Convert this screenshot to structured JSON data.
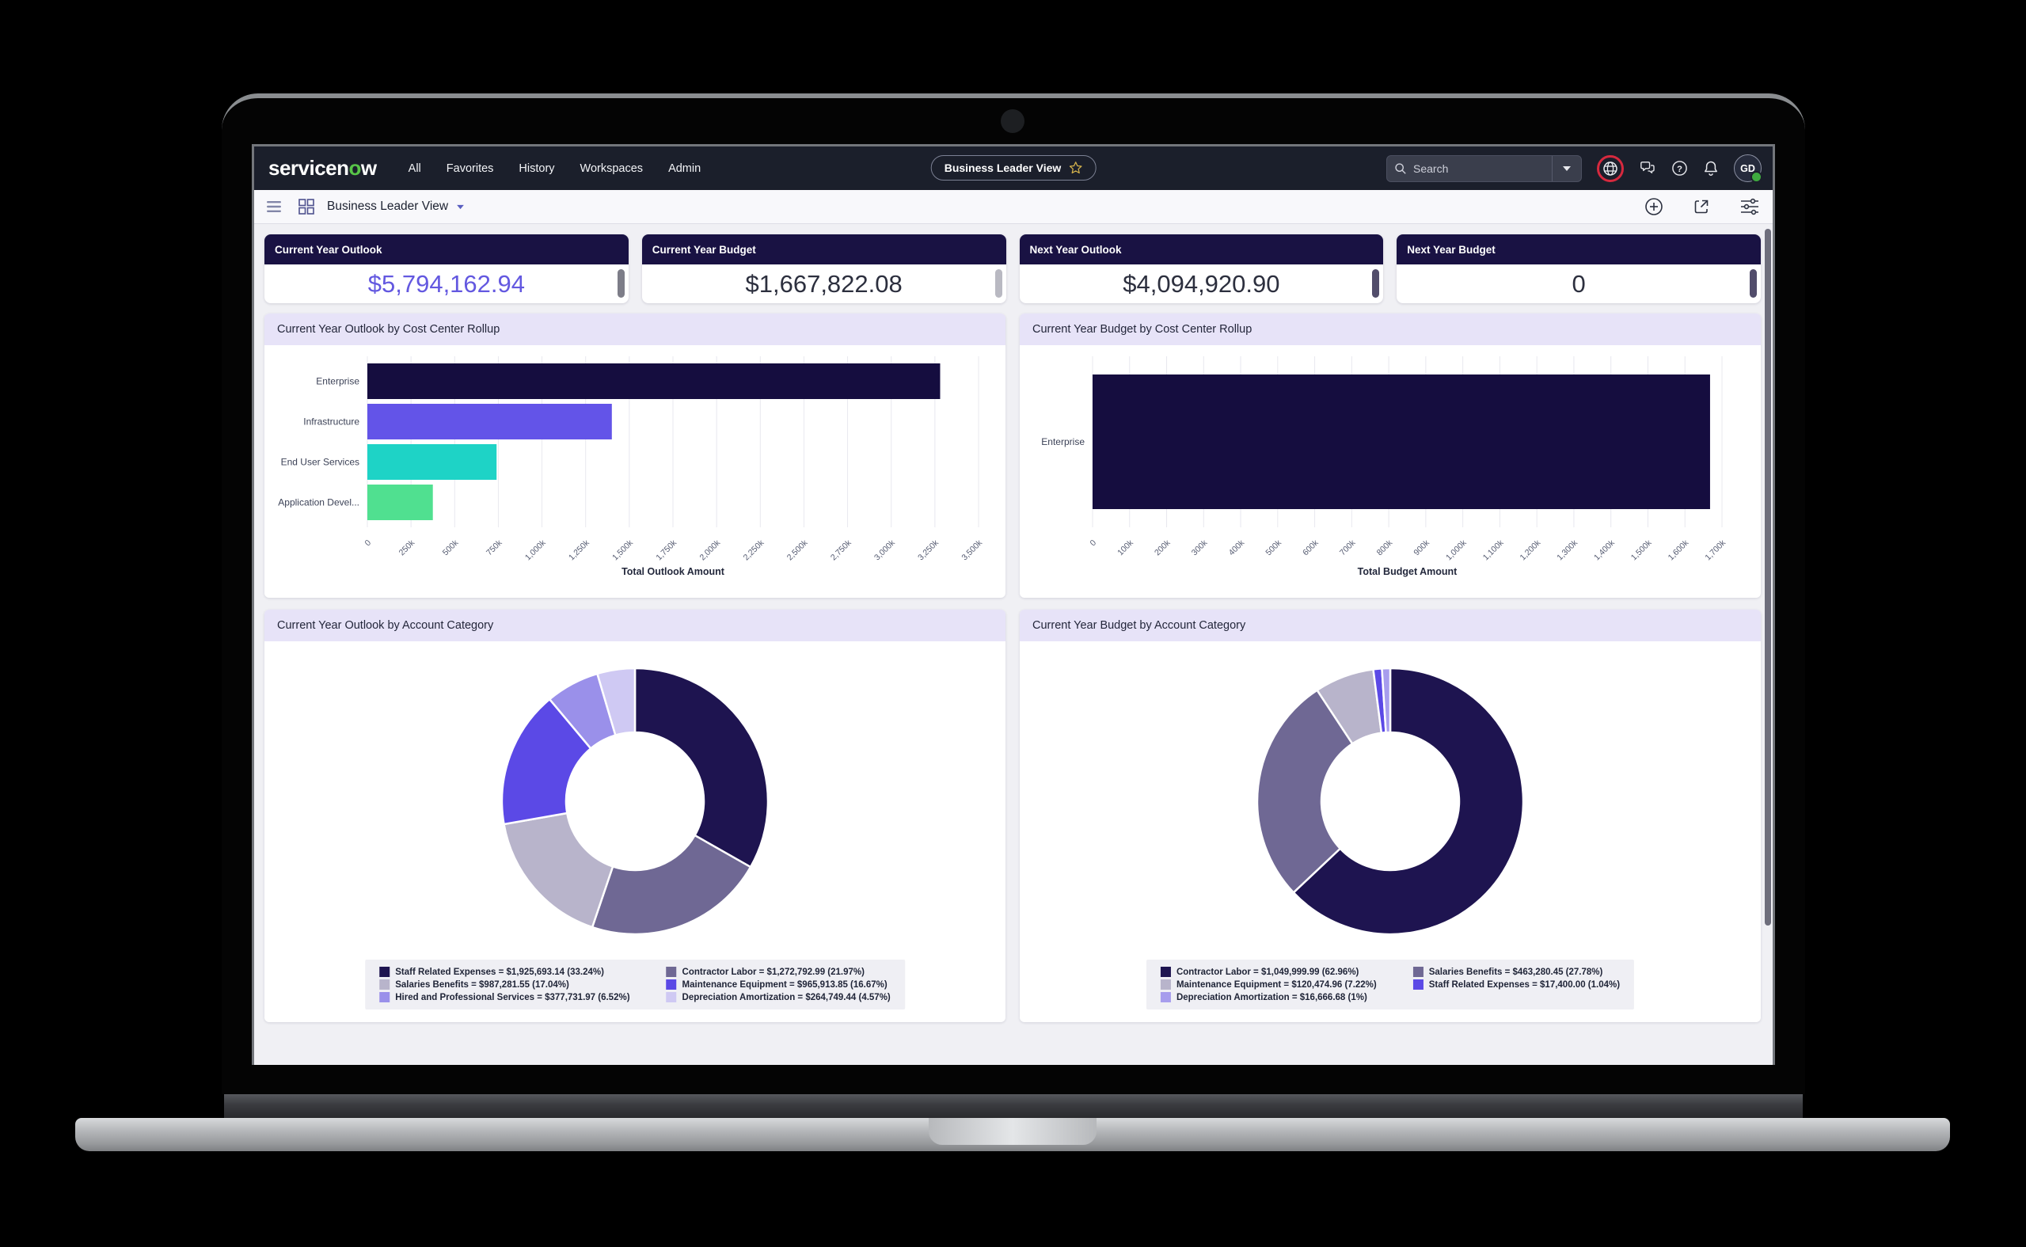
{
  "colors": {
    "header_bg": "#1b1f2b",
    "logo_green": "#58c548",
    "kpi_header_navy": "#191243",
    "panel_title_bg": "#e7e3f8",
    "highlight_ring_red": "#d6293e",
    "kpi_value_accent": "#6358e0"
  },
  "header": {
    "logo": {
      "part1": "servicen",
      "accent": "o",
      "part2": "w"
    },
    "nav_items": [
      "All",
      "Favorites",
      "History",
      "Workspaces",
      "Admin"
    ],
    "favorite_pill": {
      "label": "Business Leader View"
    },
    "search": {
      "placeholder": "Search"
    },
    "avatar_initials": "GD"
  },
  "toolbar": {
    "title": "Business Leader View"
  },
  "kpi_cards": [
    {
      "title": "Current Year Outlook",
      "value": "$5,794,162.94",
      "value_color": "#6358e0",
      "thumb_color": "#7d7d88"
    },
    {
      "title": "Current Year Budget",
      "value": "$1,667,822.08",
      "value_color": "#2c2f3e",
      "thumb_color": "#b9b9c2"
    },
    {
      "title": "Next Year Outlook",
      "value": "$4,094,920.90",
      "value_color": "#2c2f3e",
      "thumb_color": "#524d6b"
    },
    {
      "title": "Next Year Budget",
      "value": "0",
      "value_color": "#2c2f3e",
      "thumb_color": "#524d6b"
    }
  ],
  "chart_data": [
    {
      "type": "bar",
      "title": "Current Year Outlook by Cost Center Rollup",
      "orientation": "horizontal",
      "categories": [
        "Enterprise",
        "Infrastructure",
        "End User Services",
        "Application Devel..."
      ],
      "values": [
        3280000,
        1400000,
        740000,
        375000
      ],
      "colors": [
        "#150d3f",
        "#6354e8",
        "#1ed3c6",
        "#50e090"
      ],
      "xlabel": "Total Outlook Amount",
      "xlim": [
        0,
        3500000
      ],
      "grid": true,
      "tick_labels": [
        "0",
        "250k",
        "500k",
        "750k",
        "1,000k",
        "1,250k",
        "1,500k",
        "1,750k",
        "2,000k",
        "2,250k",
        "2,500k",
        "2,750k",
        "3,000k",
        "3,250k",
        "3,500k"
      ]
    },
    {
      "type": "bar",
      "title": "Current Year Budget by Cost Center Rollup",
      "orientation": "horizontal",
      "categories": [
        "Enterprise"
      ],
      "values": [
        1667822.08
      ],
      "colors": [
        "#150d3f"
      ],
      "xlabel": "Total Budget Amount",
      "xlim": [
        0,
        1700000
      ],
      "grid": true,
      "tick_labels": [
        "0",
        "100k",
        "200k",
        "300k",
        "400k",
        "500k",
        "600k",
        "700k",
        "800k",
        "900k",
        "1,000k",
        "1,100k",
        "1,200k",
        "1,300k",
        "1,400k",
        "1,500k",
        "1,600k",
        "1,700k"
      ]
    },
    {
      "type": "donut",
      "title": "Current Year Outlook by Account Category",
      "slices": [
        {
          "label": "Staff Related Expenses",
          "value": 1925693.14,
          "pct": "33.24%",
          "color": "#1e1450",
          "legend": "Staff Related Expenses = $1,925,693.14 (33.24%)"
        },
        {
          "label": "Contractor Labor",
          "value": 1272792.99,
          "pct": "21.97%",
          "color": "#6f6894",
          "legend": "Contractor Labor = $1,272,792.99 (21.97%)"
        },
        {
          "label": "Salaries Benefits",
          "value": 987281.55,
          "pct": "17.04%",
          "color": "#b8b4cb",
          "legend": "Salaries Benefits = $987,281.55 (17.04%)"
        },
        {
          "label": "Maintenance Equipment",
          "value": 965913.85,
          "pct": "16.67%",
          "color": "#5b49e6",
          "legend": "Maintenance Equipment = $965,913.85 (16.67%)"
        },
        {
          "label": "Hired and Professional Services",
          "value": 377731.97,
          "pct": "6.52%",
          "color": "#9a90ea",
          "legend": "Hired and Professional Services = $377,731.97 (6.52%)"
        },
        {
          "label": "Depreciation Amortization",
          "value": 264749.44,
          "pct": "4.57%",
          "color": "#cfc9f3",
          "legend": "Depreciation Amortization = $264,749.44 (4.57%)"
        }
      ],
      "legend_columns": [
        [
          0,
          2,
          4
        ],
        [
          1,
          3,
          5
        ]
      ]
    },
    {
      "type": "donut",
      "title": "Current Year Budget by Account Category",
      "slices": [
        {
          "label": "Contractor Labor",
          "value": 1049999.99,
          "pct": "62.96%",
          "color": "#1e1450",
          "legend": "Contractor Labor = $1,049,999.99 (62.96%)"
        },
        {
          "label": "Salaries Benefits",
          "value": 463280.45,
          "pct": "27.78%",
          "color": "#6f6894",
          "legend": "Salaries Benefits = $463,280.45 (27.78%)"
        },
        {
          "label": "Maintenance Equipment",
          "value": 120474.96,
          "pct": "7.22%",
          "color": "#b8b4cb",
          "legend": "Maintenance Equipment = $120,474.96 (7.22%)"
        },
        {
          "label": "Staff Related Expenses",
          "value": 17400.0,
          "pct": "1.04%",
          "color": "#5b49e6",
          "legend": "Staff Related Expenses = $17,400.00 (1.04%)"
        },
        {
          "label": "Depreciation Amortization",
          "value": 16666.68,
          "pct": "1%",
          "color": "#a79ded",
          "legend": "Depreciation Amortization = $16,666.68 (1%)"
        }
      ],
      "legend_columns": [
        [
          0,
          2,
          4
        ],
        [
          1,
          3
        ]
      ]
    }
  ]
}
